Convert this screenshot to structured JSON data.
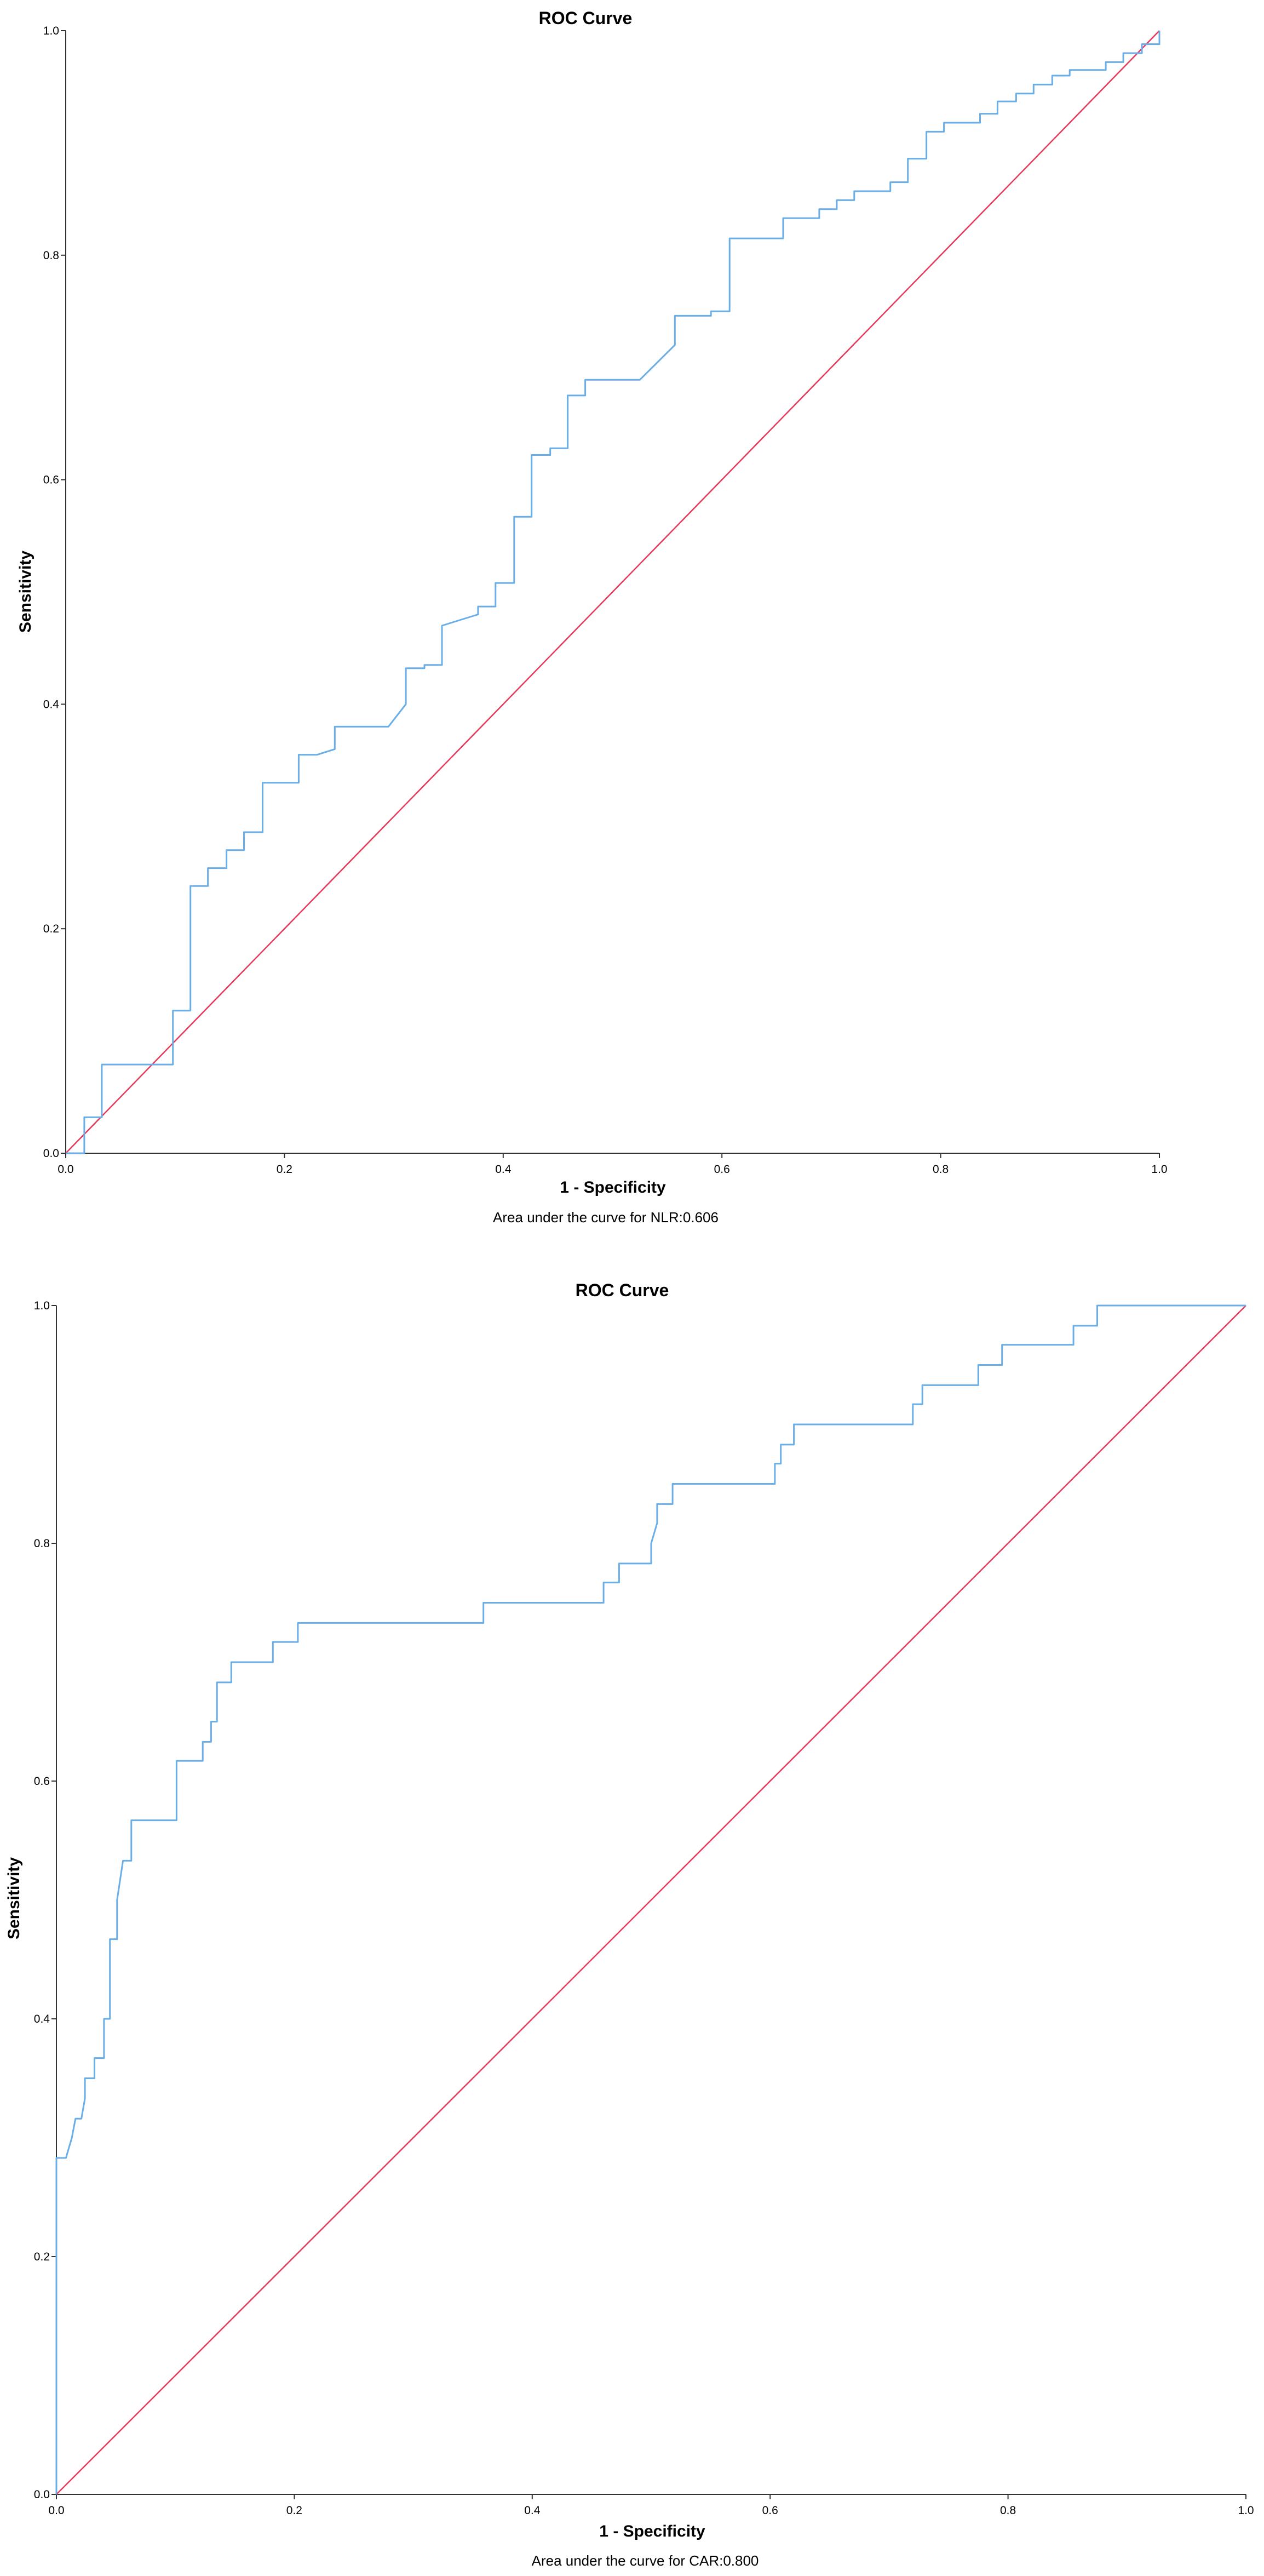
{
  "chart_data": [
    {
      "type": "line",
      "title": "ROC Curve",
      "xlabel": "1 - Specificity",
      "ylabel": "Sensitivity",
      "caption": "Area under the curve for NLR:0.606",
      "xlim": [
        0,
        1
      ],
      "ylim": [
        0,
        1
      ],
      "xticks": [
        "0.0",
        "0.2",
        "0.4",
        "0.6",
        "0.8",
        "1.0"
      ],
      "yticks": [
        "0.0",
        "0.2",
        "0.4",
        "0.6",
        "0.8",
        "1.0"
      ],
      "colors": {
        "roc": "#6aaee8",
        "reference": "#e8385a",
        "axis": "#333333"
      },
      "series": [
        {
          "name": "ROC",
          "x": [
            0.0,
            0.017,
            0.017,
            0.033,
            0.033,
            0.098,
            0.098,
            0.114,
            0.114,
            0.13,
            0.13,
            0.147,
            0.147,
            0.163,
            0.163,
            0.18,
            0.18,
            0.213,
            0.213,
            0.23,
            0.246,
            0.246,
            0.295,
            0.311,
            0.311,
            0.328,
            0.328,
            0.344,
            0.344,
            0.377,
            0.377,
            0.393,
            0.393,
            0.41,
            0.41,
            0.426,
            0.426,
            0.443,
            0.443,
            0.459,
            0.459,
            0.475,
            0.475,
            0.525,
            0.557,
            0.557,
            0.59,
            0.59,
            0.607,
            0.607,
            0.656,
            0.656,
            0.689,
            0.689,
            0.705,
            0.705,
            0.721,
            0.721,
            0.754,
            0.754,
            0.77,
            0.77,
            0.787,
            0.787,
            0.803,
            0.803,
            0.836,
            0.836,
            0.852,
            0.852,
            0.869,
            0.869,
            0.885,
            0.885,
            0.902,
            0.902,
            0.918,
            0.918,
            0.951,
            0.951,
            0.967,
            0.967,
            0.984,
            0.984,
            1.0,
            1.0
          ],
          "y": [
            0.0,
            0.0,
            0.032,
            0.032,
            0.079,
            0.079,
            0.127,
            0.127,
            0.238,
            0.238,
            0.254,
            0.254,
            0.27,
            0.27,
            0.286,
            0.286,
            0.33,
            0.33,
            0.355,
            0.355,
            0.36,
            0.38,
            0.38,
            0.4,
            0.432,
            0.432,
            0.435,
            0.435,
            0.47,
            0.48,
            0.487,
            0.487,
            0.508,
            0.508,
            0.567,
            0.567,
            0.622,
            0.622,
            0.628,
            0.628,
            0.675,
            0.675,
            0.689,
            0.689,
            0.72,
            0.746,
            0.746,
            0.75,
            0.75,
            0.815,
            0.815,
            0.833,
            0.833,
            0.841,
            0.841,
            0.849,
            0.849,
            0.857,
            0.857,
            0.865,
            0.865,
            0.886,
            0.886,
            0.91,
            0.91,
            0.918,
            0.918,
            0.926,
            0.926,
            0.937,
            0.937,
            0.944,
            0.944,
            0.952,
            0.952,
            0.96,
            0.96,
            0.965,
            0.965,
            0.972,
            0.972,
            0.98,
            0.98,
            0.988,
            0.988,
            1.0
          ]
        },
        {
          "name": "Reference line",
          "x": [
            0.0,
            1.0
          ],
          "y": [
            0.0,
            1.0
          ]
        }
      ]
    },
    {
      "type": "line",
      "title": "ROC Curve",
      "xlabel": "1 - Specificity",
      "ylabel": "Sensitivity",
      "caption": "Area under the curve for CAR:0.800",
      "xlim": [
        0,
        1
      ],
      "ylim": [
        0,
        1
      ],
      "xticks": [
        "0.0",
        "0.2",
        "0.4",
        "0.6",
        "0.8",
        "1.0"
      ],
      "yticks": [
        "0.0",
        "0.2",
        "0.4",
        "0.6",
        "0.8",
        "1.0"
      ],
      "colors": {
        "roc": "#6aaee8",
        "reference": "#e8385a",
        "axis": "#333333"
      },
      "series": [
        {
          "name": "ROC",
          "x": [
            0.0,
            0.0,
            0.008,
            0.013,
            0.016,
            0.021,
            0.024,
            0.024,
            0.032,
            0.032,
            0.04,
            0.04,
            0.045,
            0.045,
            0.051,
            0.051,
            0.056,
            0.063,
            0.063,
            0.068,
            0.068,
            0.101,
            0.101,
            0.123,
            0.123,
            0.13,
            0.13,
            0.135,
            0.135,
            0.147,
            0.147,
            0.182,
            0.182,
            0.203,
            0.203,
            0.359,
            0.359,
            0.46,
            0.46,
            0.473,
            0.473,
            0.5,
            0.5,
            0.505,
            0.505,
            0.518,
            0.518,
            0.604,
            0.604,
            0.609,
            0.609,
            0.62,
            0.62,
            0.72,
            0.72,
            0.728,
            0.728,
            0.775,
            0.775,
            0.795,
            0.795,
            0.855,
            0.855,
            0.875,
            0.875,
            1.0
          ],
          "y": [
            0.0,
            0.283,
            0.283,
            0.3,
            0.316,
            0.316,
            0.333,
            0.35,
            0.35,
            0.367,
            0.367,
            0.4,
            0.4,
            0.467,
            0.467,
            0.5,
            0.533,
            0.533,
            0.567,
            0.567,
            0.567,
            0.567,
            0.617,
            0.617,
            0.633,
            0.633,
            0.65,
            0.65,
            0.683,
            0.683,
            0.7,
            0.7,
            0.717,
            0.717,
            0.733,
            0.733,
            0.75,
            0.75,
            0.767,
            0.767,
            0.783,
            0.783,
            0.8,
            0.817,
            0.833,
            0.833,
            0.85,
            0.85,
            0.867,
            0.867,
            0.883,
            0.883,
            0.9,
            0.9,
            0.917,
            0.917,
            0.933,
            0.933,
            0.95,
            0.95,
            0.967,
            0.967,
            0.983,
            0.983,
            1.0,
            1.0
          ]
        },
        {
          "name": "Reference line",
          "x": [
            0.0,
            1.0
          ],
          "y": [
            0.0,
            1.0
          ]
        }
      ]
    }
  ]
}
